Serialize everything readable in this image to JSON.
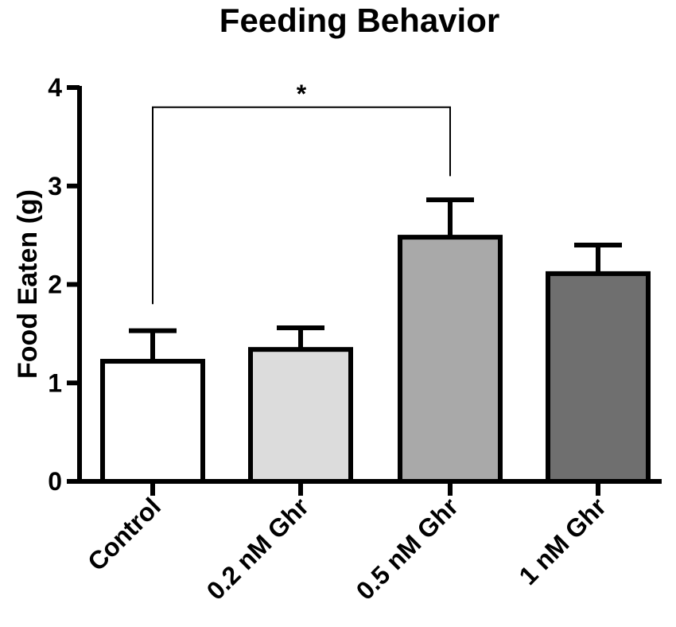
{
  "chart_data": {
    "type": "bar",
    "title": "Feeding Behavior",
    "xlabel": "",
    "ylabel": "Food Eaten (g)",
    "ylim": [
      0,
      4
    ],
    "yticks": [
      0,
      1,
      2,
      3,
      4
    ],
    "categories": [
      "Control",
      "0.2 nM Ghr",
      "0.5 nM Ghr",
      "1 nM Ghr"
    ],
    "values": [
      1.22,
      1.34,
      2.48,
      2.11
    ],
    "errors": [
      0.31,
      0.22,
      0.38,
      0.29
    ],
    "bar_colors": [
      "#ffffff",
      "#dcdcdc",
      "#a9a9a9",
      "#6f6f6f"
    ],
    "significance": {
      "from": "Control",
      "to": "0.5 nM Ghr",
      "label": "*",
      "level": 3.8,
      "left_end": 1.8,
      "right_end": 3.1
    }
  }
}
